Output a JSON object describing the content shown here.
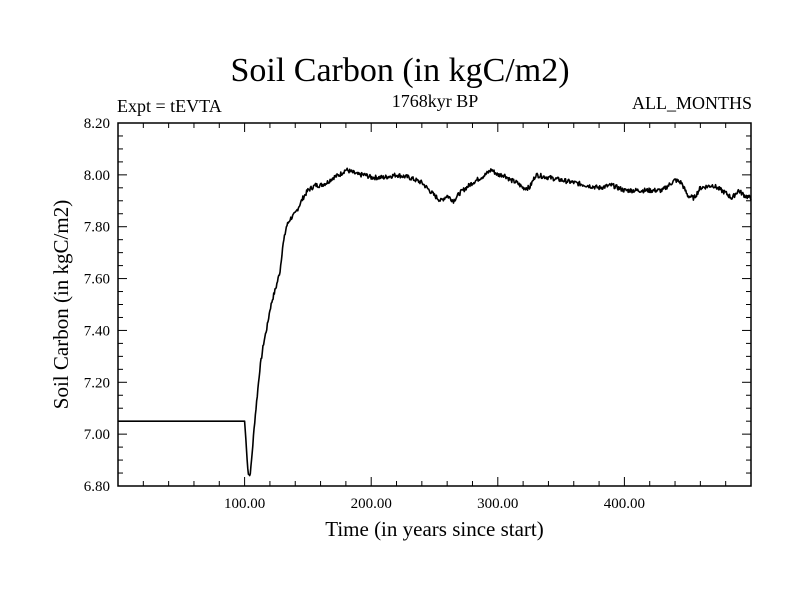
{
  "chart_data": {
    "type": "line",
    "title": "Soil Carbon (in kgC/m2)",
    "subtitle": "1768kyr BP",
    "left_annotation": "Expt = tEVTA",
    "right_annotation": "ALL_MONTHS",
    "xlabel": "Time (in years since start)",
    "ylabel": "Soil Carbon (in kgC/m2)",
    "xlim": [
      0,
      500
    ],
    "ylim": [
      6.8,
      8.2
    ],
    "xticks": [
      100,
      200,
      300,
      400
    ],
    "xtick_labels": [
      "100.00",
      "200.00",
      "300.00",
      "400.00"
    ],
    "yticks": [
      6.8,
      7.0,
      7.2,
      7.4,
      7.6,
      7.8,
      8.0,
      8.2
    ],
    "ytick_labels": [
      "6.80",
      "7.00",
      "7.20",
      "7.40",
      "7.60",
      "7.80",
      "8.00",
      "8.20"
    ],
    "grid": false,
    "series": [
      {
        "name": "Soil Carbon",
        "x": [
          0,
          100,
          101,
          102,
          103,
          104,
          105,
          106,
          108,
          110,
          112,
          115,
          118,
          120,
          122,
          125,
          128,
          130,
          133,
          136,
          138,
          140,
          143,
          146,
          150,
          153,
          156,
          160,
          165,
          170,
          175,
          180,
          185,
          190,
          195,
          200,
          210,
          220,
          230,
          240,
          250,
          255,
          260,
          265,
          270,
          280,
          290,
          295,
          300,
          305,
          310,
          315,
          320,
          325,
          330,
          340,
          350,
          360,
          370,
          380,
          390,
          400,
          410,
          420,
          430,
          440,
          445,
          450,
          455,
          460,
          470,
          480,
          485,
          490,
          495,
          500
        ],
        "values": [
          7.05,
          7.05,
          6.98,
          6.9,
          6.85,
          6.84,
          6.87,
          6.93,
          7.05,
          7.15,
          7.25,
          7.35,
          7.42,
          7.48,
          7.52,
          7.57,
          7.63,
          7.72,
          7.8,
          7.83,
          7.84,
          7.85,
          7.88,
          7.91,
          7.94,
          7.95,
          7.96,
          7.96,
          7.97,
          7.99,
          8.0,
          8.02,
          8.01,
          8.0,
          8.0,
          7.99,
          7.99,
          8.0,
          7.99,
          7.97,
          7.92,
          7.9,
          7.92,
          7.9,
          7.93,
          7.97,
          8.0,
          8.02,
          8.0,
          8.0,
          7.98,
          7.97,
          7.95,
          7.95,
          8.0,
          7.99,
          7.98,
          7.97,
          7.96,
          7.95,
          7.96,
          7.94,
          7.94,
          7.94,
          7.94,
          7.98,
          7.97,
          7.92,
          7.91,
          7.95,
          7.96,
          7.93,
          7.91,
          7.94,
          7.92,
          7.91
        ]
      }
    ]
  }
}
